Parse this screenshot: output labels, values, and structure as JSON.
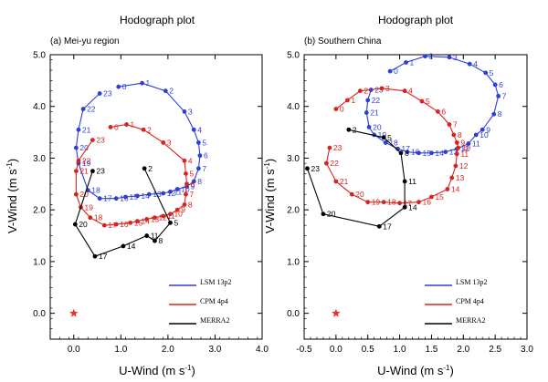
{
  "chart_data": [
    {
      "type": "line",
      "title": "Hodograph plot",
      "panel_label": "(a) Mei-yu region",
      "xlabel": "U-Wind (m s",
      "xlabel_sup": "-1",
      "xlabel_end": ")",
      "ylabel": "V-Wind (m s",
      "ylabel_sup": "-1",
      "ylabel_end": ")",
      "xlim": [
        -0.5,
        4.0
      ],
      "ylim": [
        -0.5,
        5.0
      ],
      "xticks": [
        "0.0",
        "1.0",
        "2.0",
        "3.0",
        "4.0"
      ],
      "yticks": [
        "0.0",
        "1.0",
        "2.0",
        "3.0",
        "4.0",
        "5.0"
      ],
      "origin_marker": {
        "x": 0.0,
        "y": 0.0,
        "color": "#e8312f",
        "shape": "star"
      },
      "legend_position": "bottom-right",
      "series": [
        {
          "name": "LSM 13p2",
          "color": "#2c3fd6",
          "points": [
            {
              "label": "0",
              "x": 0.95,
              "y": 4.38
            },
            {
              "label": "1",
              "x": 1.45,
              "y": 4.45
            },
            {
              "label": "2",
              "x": 1.95,
              "y": 4.3
            },
            {
              "label": "3",
              "x": 2.35,
              "y": 3.9
            },
            {
              "label": "4",
              "x": 2.55,
              "y": 3.55
            },
            {
              "label": "5",
              "x": 2.65,
              "y": 3.3
            },
            {
              "label": "6",
              "x": 2.68,
              "y": 3.05
            },
            {
              "label": "7",
              "x": 2.65,
              "y": 2.8
            },
            {
              "label": "8",
              "x": 2.55,
              "y": 2.55
            },
            {
              "label": "9",
              "x": 2.4,
              "y": 2.45
            },
            {
              "label": "10",
              "x": 2.2,
              "y": 2.4
            },
            {
              "label": "11",
              "x": 2.05,
              "y": 2.35
            },
            {
              "label": "12",
              "x": 1.9,
              "y": 2.32
            },
            {
              "label": "13",
              "x": 1.6,
              "y": 2.3
            },
            {
              "label": "14",
              "x": 1.35,
              "y": 2.27
            },
            {
              "label": "15",
              "x": 1.1,
              "y": 2.25
            },
            {
              "label": "16",
              "x": 0.9,
              "y": 2.22
            },
            {
              "label": "17",
              "x": 0.55,
              "y": 2.22
            },
            {
              "label": "18",
              "x": 0.3,
              "y": 2.38
            },
            {
              "label": "19",
              "x": 0.1,
              "y": 2.9
            },
            {
              "label": "20",
              "x": 0.05,
              "y": 3.2
            },
            {
              "label": "21",
              "x": 0.1,
              "y": 3.55
            },
            {
              "label": "22",
              "x": 0.2,
              "y": 3.95
            },
            {
              "label": "23",
              "x": 0.55,
              "y": 4.25
            }
          ]
        },
        {
          "name": "CPM 4p4",
          "color": "#d9231d",
          "points": [
            {
              "label": "0",
              "x": 0.78,
              "y": 3.6
            },
            {
              "label": "1",
              "x": 1.12,
              "y": 3.65
            },
            {
              "label": "2",
              "x": 1.48,
              "y": 3.55
            },
            {
              "label": "3",
              "x": 1.9,
              "y": 3.3
            },
            {
              "label": "4",
              "x": 2.35,
              "y": 2.95
            },
            {
              "label": "5",
              "x": 2.38,
              "y": 2.7
            },
            {
              "label": "6",
              "x": 2.4,
              "y": 2.5
            },
            {
              "label": "7",
              "x": 2.38,
              "y": 2.3
            },
            {
              "label": "8",
              "x": 2.35,
              "y": 2.1
            },
            {
              "label": "9",
              "x": 2.2,
              "y": 2.0
            },
            {
              "label": "10",
              "x": 2.05,
              "y": 1.92
            },
            {
              "label": "11",
              "x": 1.9,
              "y": 1.88
            },
            {
              "label": "12",
              "x": 1.72,
              "y": 1.85
            },
            {
              "label": "13",
              "x": 1.55,
              "y": 1.82
            },
            {
              "label": "14",
              "x": 1.35,
              "y": 1.78
            },
            {
              "label": "15",
              "x": 1.2,
              "y": 1.75
            },
            {
              "label": "16",
              "x": 0.9,
              "y": 1.72
            },
            {
              "label": "17",
              "x": 0.65,
              "y": 1.7
            },
            {
              "label": "18",
              "x": 0.35,
              "y": 1.85
            },
            {
              "label": "19",
              "x": 0.15,
              "y": 2.05
            },
            {
              "label": "20",
              "x": 0.05,
              "y": 2.3
            },
            {
              "label": "21",
              "x": 0.05,
              "y": 2.75
            },
            {
              "label": "22",
              "x": 0.1,
              "y": 2.95
            },
            {
              "label": "23",
              "x": 0.4,
              "y": 3.35
            }
          ]
        },
        {
          "name": "MERRA2",
          "color": "#000000",
          "points": [
            {
              "label": "2",
              "x": 1.5,
              "y": 2.8
            },
            {
              "label": "5",
              "x": 2.05,
              "y": 1.75
            },
            {
              "label": "8",
              "x": 1.72,
              "y": 1.4
            },
            {
              "label": "11",
              "x": 1.55,
              "y": 1.5
            },
            {
              "label": "14",
              "x": 1.05,
              "y": 1.3
            },
            {
              "label": "17",
              "x": 0.45,
              "y": 1.1
            },
            {
              "label": "20",
              "x": 0.03,
              "y": 1.72
            },
            {
              "label": "23",
              "x": 0.4,
              "y": 2.75
            }
          ]
        }
      ]
    },
    {
      "type": "line",
      "title": "Hodograph plot",
      "panel_label": "(b) Southern China",
      "xlabel": "U-Wind (m s",
      "xlabel_sup": "-1",
      "xlabel_end": ")",
      "ylabel": "V-Wind (m s",
      "ylabel_sup": "-1",
      "ylabel_end": ")",
      "xlim": [
        -0.5,
        3.0
      ],
      "ylim": [
        -0.5,
        5.0
      ],
      "xticks": [
        "-0.5",
        "0.0",
        "0.5",
        "1.0",
        "1.5",
        "2.0",
        "2.5",
        "3.0"
      ],
      "yticks": [
        "0.0",
        "1.0",
        "2.0",
        "3.0",
        "4.0",
        "5.0"
      ],
      "origin_marker": {
        "x": 0.0,
        "y": 0.0,
        "color": "#e8312f",
        "shape": "star"
      },
      "legend_position": "bottom-right",
      "series": [
        {
          "name": "LSM 13p2",
          "color": "#2c3fd6",
          "points": [
            {
              "label": "0",
              "x": 0.85,
              "y": 4.68
            },
            {
              "label": "1",
              "x": 1.1,
              "y": 4.85
            },
            {
              "label": "2",
              "x": 1.4,
              "y": 4.97
            },
            {
              "label": "3",
              "x": 1.78,
              "y": 4.95
            },
            {
              "label": "4",
              "x": 2.1,
              "y": 4.82
            },
            {
              "label": "5",
              "x": 2.35,
              "y": 4.65
            },
            {
              "label": "6",
              "x": 2.5,
              "y": 4.42
            },
            {
              "label": "7",
              "x": 2.55,
              "y": 4.2
            },
            {
              "label": "8",
              "x": 2.48,
              "y": 3.85
            },
            {
              "label": "9",
              "x": 2.3,
              "y": 3.55
            },
            {
              "label": "10",
              "x": 2.2,
              "y": 3.45
            },
            {
              "label": "11",
              "x": 2.08,
              "y": 3.28
            },
            {
              "label": "12",
              "x": 1.9,
              "y": 3.18
            },
            {
              "label": "13",
              "x": 1.72,
              "y": 3.12
            },
            {
              "label": "14",
              "x": 1.5,
              "y": 3.1
            },
            {
              "label": "15",
              "x": 1.3,
              "y": 3.1
            },
            {
              "label": "16",
              "x": 1.12,
              "y": 3.12
            },
            {
              "label": "17",
              "x": 0.97,
              "y": 3.18
            },
            {
              "label": "18",
              "x": 0.78,
              "y": 3.3
            },
            {
              "label": "19",
              "x": 0.6,
              "y": 3.45
            },
            {
              "label": "20",
              "x": 0.52,
              "y": 3.6
            },
            {
              "label": "21",
              "x": 0.48,
              "y": 3.88
            },
            {
              "label": "22",
              "x": 0.5,
              "y": 4.12
            },
            {
              "label": "23",
              "x": 0.55,
              "y": 4.32
            }
          ]
        },
        {
          "name": "CPM 4p4",
          "color": "#d9231d",
          "points": [
            {
              "label": "0",
              "x": 0.0,
              "y": 3.95
            },
            {
              "label": "1",
              "x": 0.18,
              "y": 4.12
            },
            {
              "label": "2",
              "x": 0.38,
              "y": 4.3
            },
            {
              "label": "3",
              "x": 0.72,
              "y": 4.35
            },
            {
              "label": "4",
              "x": 1.08,
              "y": 4.3
            },
            {
              "label": "5",
              "x": 1.35,
              "y": 4.1
            },
            {
              "label": "6",
              "x": 1.6,
              "y": 3.9
            },
            {
              "label": "7",
              "x": 1.78,
              "y": 3.65
            },
            {
              "label": "8",
              "x": 1.85,
              "y": 3.45
            },
            {
              "label": "9",
              "x": 1.9,
              "y": 3.3
            },
            {
              "label": "10",
              "x": 1.92,
              "y": 3.2
            },
            {
              "label": "11",
              "x": 1.9,
              "y": 3.08
            },
            {
              "label": "12",
              "x": 1.88,
              "y": 2.85
            },
            {
              "label": "13",
              "x": 1.82,
              "y": 2.62
            },
            {
              "label": "14",
              "x": 1.75,
              "y": 2.4
            },
            {
              "label": "15",
              "x": 1.5,
              "y": 2.25
            },
            {
              "label": "16",
              "x": 1.3,
              "y": 2.15
            },
            {
              "label": "17",
              "x": 1.0,
              "y": 2.13
            },
            {
              "label": "18",
              "x": 0.75,
              "y": 2.15
            },
            {
              "label": "19",
              "x": 0.5,
              "y": 2.15
            },
            {
              "label": "20",
              "x": 0.25,
              "y": 2.3
            },
            {
              "label": "21",
              "x": 0.0,
              "y": 2.55
            },
            {
              "label": "22",
              "x": -0.15,
              "y": 2.9
            },
            {
              "label": "23",
              "x": -0.1,
              "y": 3.2
            }
          ]
        },
        {
          "name": "MERRA2",
          "color": "#000000",
          "points": [
            {
              "label": "2",
              "x": 0.2,
              "y": 3.55
            },
            {
              "label": "5",
              "x": 0.75,
              "y": 3.4
            },
            {
              "label": "8",
              "x": 1.02,
              "y": 3.1
            },
            {
              "label": "11",
              "x": 1.08,
              "y": 2.55
            },
            {
              "label": "14",
              "x": 1.08,
              "y": 2.05
            },
            {
              "label": "17",
              "x": 0.68,
              "y": 1.68
            },
            {
              "label": "20",
              "x": -0.2,
              "y": 1.92
            },
            {
              "label": "23",
              "x": -0.45,
              "y": 2.8
            }
          ]
        }
      ]
    }
  ]
}
